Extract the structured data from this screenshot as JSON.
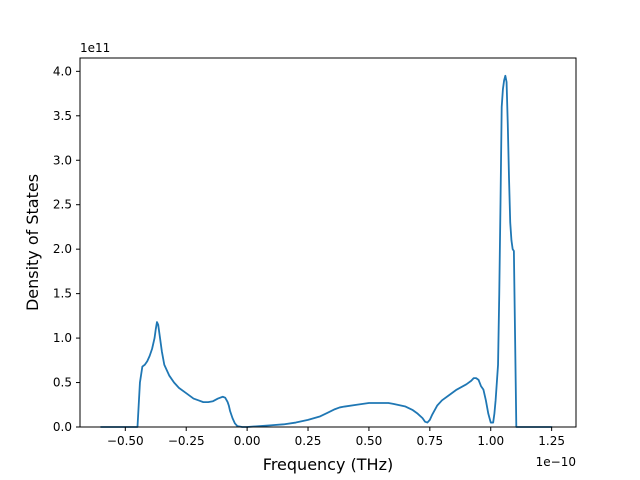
{
  "chart_data": {
    "type": "line",
    "title": "",
    "xlabel": "Frequency (THz)",
    "ylabel": "Density of States",
    "x_offset_label": "1e−10",
    "y_offset_label": "1e11",
    "xlim": [
      -0.686,
      1.35
    ],
    "ylim": [
      0,
      4.15
    ],
    "grid": false,
    "x_ticks": [
      -0.5,
      -0.25,
      0.0,
      0.25,
      0.5,
      0.75,
      1.0,
      1.25
    ],
    "x_tick_labels": [
      "−0.50",
      "−0.25",
      "0.00",
      "0.25",
      "0.50",
      "0.75",
      "1.00",
      "1.25"
    ],
    "y_ticks": [
      0,
      0.5,
      1.0,
      1.5,
      2.0,
      2.5,
      3.0,
      3.5,
      4.0
    ],
    "y_tick_labels": [
      "0.0",
      "0.5",
      "1.0",
      "1.5",
      "2.0",
      "2.5",
      "3.0",
      "3.5",
      "4.0"
    ],
    "series": [
      {
        "color": "#1f77b4",
        "x": [
          -0.6,
          -0.45,
          -0.445,
          -0.44,
          -0.43,
          -0.42,
          -0.41,
          -0.4,
          -0.39,
          -0.38,
          -0.375,
          -0.37,
          -0.365,
          -0.36,
          -0.35,
          -0.34,
          -0.32,
          -0.3,
          -0.28,
          -0.25,
          -0.22,
          -0.2,
          -0.18,
          -0.16,
          -0.14,
          -0.12,
          -0.1,
          -0.09,
          -0.08,
          -0.075,
          -0.07,
          -0.06,
          -0.05,
          -0.04,
          -0.02,
          0.0,
          0.05,
          0.1,
          0.15,
          0.2,
          0.25,
          0.3,
          0.33,
          0.36,
          0.38,
          0.4,
          0.45,
          0.5,
          0.55,
          0.58,
          0.6,
          0.65,
          0.68,
          0.7,
          0.72,
          0.73,
          0.74,
          0.75,
          0.76,
          0.78,
          0.8,
          0.83,
          0.86,
          0.9,
          0.92,
          0.93,
          0.94,
          0.95,
          0.96,
          0.97,
          0.98,
          0.99,
          1.0,
          1.01,
          1.015,
          1.02,
          1.025,
          1.03,
          1.035,
          1.04,
          1.045,
          1.05,
          1.055,
          1.06,
          1.065,
          1.07,
          1.075,
          1.08,
          1.085,
          1.09,
          1.095,
          1.1,
          1.105,
          1.11,
          1.115,
          1.12,
          1.25
        ],
        "y": [
          0,
          0,
          0.25,
          0.5,
          0.68,
          0.7,
          0.74,
          0.8,
          0.88,
          1.0,
          1.1,
          1.18,
          1.15,
          1.05,
          0.85,
          0.7,
          0.58,
          0.5,
          0.44,
          0.38,
          0.32,
          0.3,
          0.28,
          0.28,
          0.29,
          0.32,
          0.34,
          0.33,
          0.28,
          0.24,
          0.18,
          0.1,
          0.04,
          0.01,
          0.0,
          0.0,
          0.01,
          0.02,
          0.03,
          0.05,
          0.08,
          0.12,
          0.16,
          0.2,
          0.22,
          0.23,
          0.25,
          0.27,
          0.27,
          0.27,
          0.26,
          0.23,
          0.19,
          0.15,
          0.1,
          0.06,
          0.05,
          0.08,
          0.14,
          0.24,
          0.3,
          0.36,
          0.42,
          0.48,
          0.52,
          0.55,
          0.55,
          0.53,
          0.46,
          0.42,
          0.3,
          0.15,
          0.05,
          0.05,
          0.15,
          0.3,
          0.5,
          0.7,
          1.5,
          2.5,
          3.6,
          3.8,
          3.9,
          3.95,
          3.88,
          3.4,
          2.8,
          2.3,
          2.1,
          2.0,
          1.98,
          1.0,
          0.0,
          0.0,
          0.0,
          0.0,
          0.0
        ]
      }
    ]
  }
}
